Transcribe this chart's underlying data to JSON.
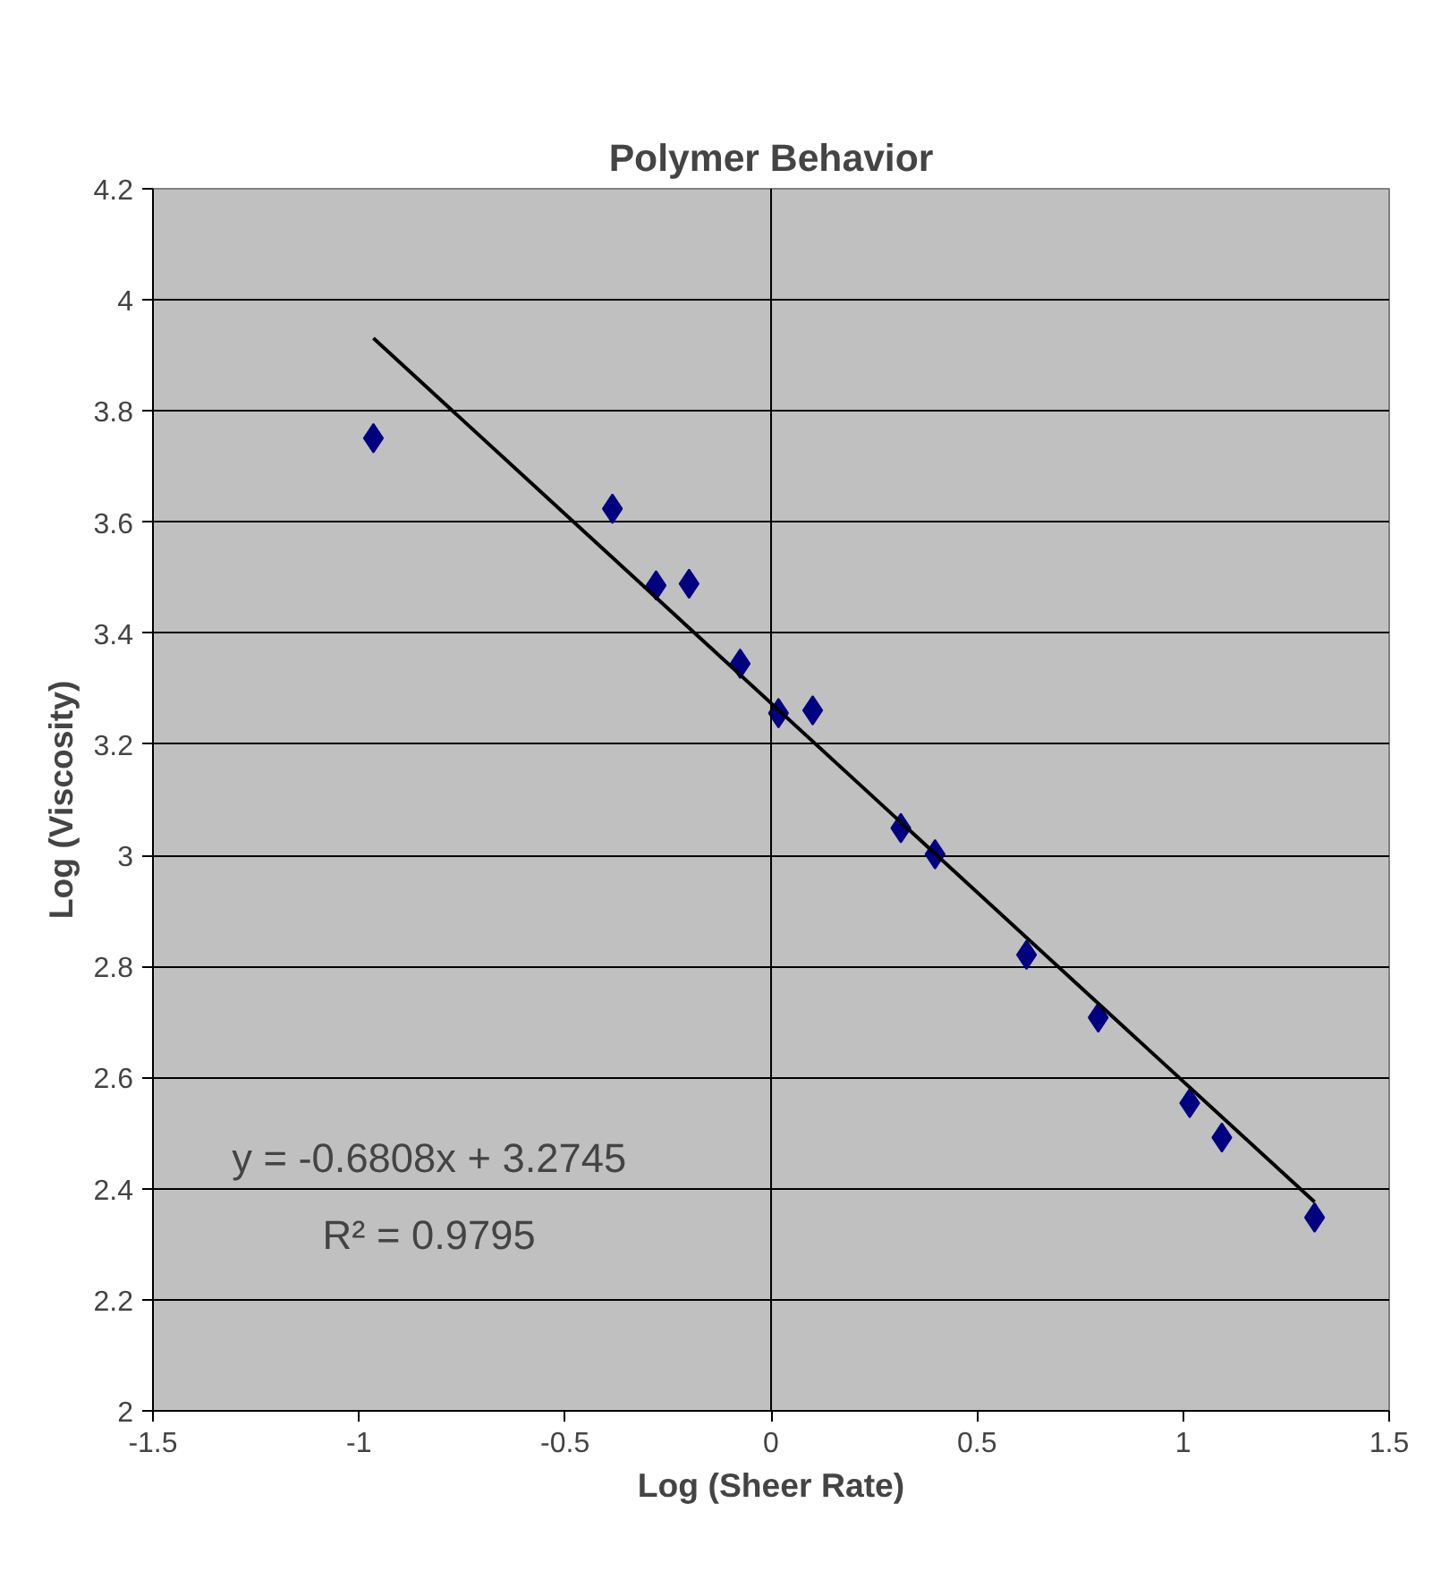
{
  "chart_data": {
    "type": "scatter",
    "title": "Polymer Behavior",
    "xlabel": "Log (Sheer Rate)",
    "ylabel": "Log (Viscosity)",
    "series": [
      {
        "type": "scatter",
        "color": "#000080",
        "marker": "diamond",
        "x": [
          -0.965,
          -0.385,
          -0.279,
          -0.199,
          -0.075,
          0.018,
          0.101,
          0.315,
          0.398,
          0.62,
          0.794,
          1.016,
          1.094,
          1.319
        ],
        "values": [
          3.751,
          3.624,
          3.486,
          3.489,
          3.345,
          3.256,
          3.261,
          3.049,
          3.002,
          2.821,
          2.708,
          2.554,
          2.492,
          2.348
        ]
      },
      {
        "type": "line",
        "color": "#000000",
        "marker": "none",
        "line_style": "solid",
        "x": [
          -0.965,
          1.319
        ],
        "values": [
          3.931,
          2.376
        ]
      }
    ],
    "annotations": [
      "y = -0.6808x + 3.2745",
      "R² = 0.9795"
    ],
    "xlim": [
      -1.5,
      1.5
    ],
    "xticks": [
      -1.5,
      -1,
      -0.5,
      0,
      0.5,
      1,
      1.5
    ],
    "ylim": [
      2,
      4.2
    ],
    "yticks": [
      2,
      2.2,
      2.4,
      2.6,
      2.8,
      3,
      3.2,
      3.4,
      3.6,
      3.8,
      4,
      4.2
    ],
    "ref_lines": [
      {
        "axis": "x",
        "value": 0,
        "color": "#000000"
      }
    ],
    "grid": "y"
  }
}
